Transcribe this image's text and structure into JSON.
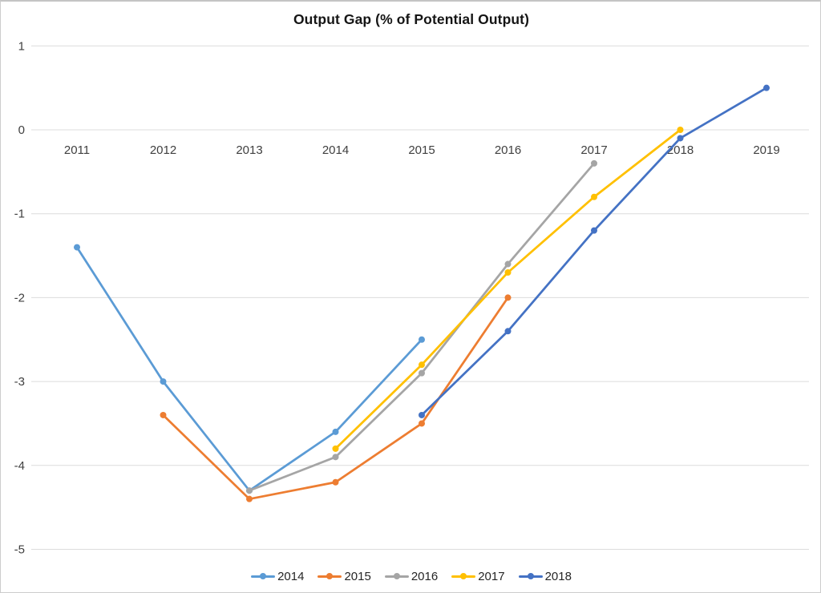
{
  "chart_data": {
    "type": "line",
    "title": "Output Gap (% of Potential Output)",
    "categories": [
      "2011",
      "2012",
      "2013",
      "2014",
      "2015",
      "2016",
      "2017",
      "2018",
      "2019"
    ],
    "series": [
      {
        "name": "2014",
        "color": "#5B9BD5",
        "values": [
          -1.4,
          -3.0,
          -4.3,
          -3.6,
          -2.5,
          null,
          null,
          null,
          null
        ]
      },
      {
        "name": "2015",
        "color": "#ED7D31",
        "values": [
          null,
          -3.4,
          -4.4,
          -4.2,
          -3.5,
          -2.0,
          null,
          null,
          null
        ]
      },
      {
        "name": "2016",
        "color": "#A5A5A5",
        "values": [
          null,
          null,
          -4.3,
          -3.9,
          -2.9,
          -1.6,
          -0.4,
          null,
          null
        ]
      },
      {
        "name": "2017",
        "color": "#FFC000",
        "values": [
          null,
          null,
          null,
          -3.8,
          -2.8,
          -1.7,
          -0.8,
          0.0,
          null
        ]
      },
      {
        "name": "2018",
        "color": "#4472C4",
        "values": [
          null,
          null,
          null,
          null,
          -3.4,
          -2.4,
          -1.2,
          -0.1,
          0.5
        ]
      }
    ],
    "xlabel": "",
    "ylabel": "",
    "ylim": [
      -5,
      1
    ],
    "yticks": [
      1,
      0,
      -1,
      -2,
      -3,
      -4,
      -5
    ],
    "grid": "horizontal-only",
    "gridline_color": "#dcdcdc",
    "axis_label_color": "#3f3f3f",
    "legend_position": "bottom",
    "marker": "circle"
  }
}
